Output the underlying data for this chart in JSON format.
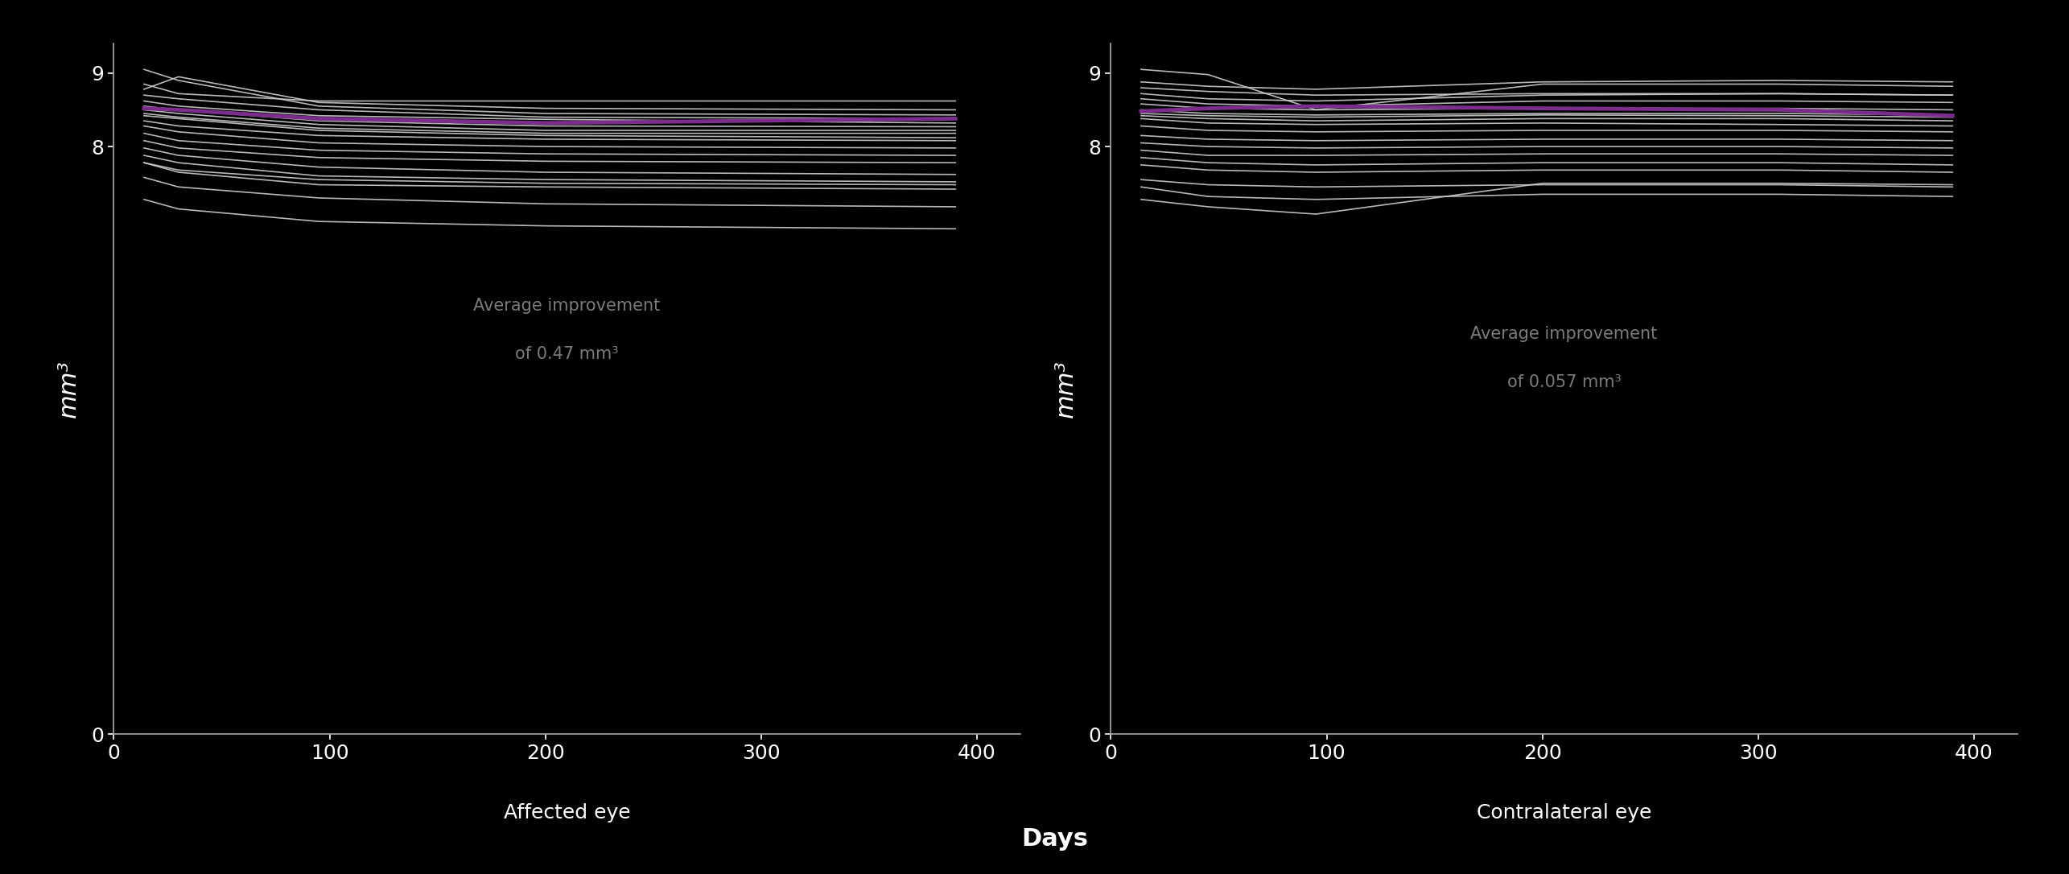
{
  "background_color": "#000000",
  "text_color": "#ffffff",
  "axis_color": "#aaaaaa",
  "line_color_individual": "#cccccc",
  "line_color_average": "#7b2d8b",
  "figsize": [
    25.71,
    10.86
  ],
  "dpi": 100,
  "ylim": [
    0,
    9.4
  ],
  "xlim": [
    0,
    420
  ],
  "yticks": [
    0,
    8,
    9
  ],
  "xticks": [
    0,
    100,
    200,
    300,
    400
  ],
  "xlabel": "Days",
  "ylabel": "mm³",
  "subtitle_left": "Affected eye",
  "subtitle_right": "Contralateral eye",
  "annotation_left_line1": "Average improvement",
  "annotation_left_line2": "of 0.47 mm³",
  "annotation_right_line1": "Average improvement",
  "annotation_right_line2": "of 0.057 mm³",
  "affected_eye_patients": [
    [
      14,
      8.85,
      30,
      8.72,
      95,
      8.62,
      200,
      8.62,
      390,
      8.62
    ],
    [
      14,
      9.05,
      30,
      8.9,
      95,
      8.55,
      200,
      8.45,
      390,
      8.43
    ],
    [
      14,
      8.78,
      30,
      8.95,
      95,
      8.6,
      200,
      8.52,
      390,
      8.5
    ],
    [
      14,
      8.7,
      30,
      8.65,
      95,
      8.5,
      200,
      8.4,
      390,
      8.38
    ],
    [
      14,
      8.62,
      30,
      8.55,
      95,
      8.42,
      200,
      8.37,
      390,
      8.32
    ],
    [
      14,
      8.55,
      30,
      8.5,
      95,
      8.35,
      200,
      8.28,
      390,
      8.27
    ],
    [
      14,
      8.5,
      30,
      8.45,
      95,
      8.3,
      200,
      8.22,
      390,
      8.22
    ],
    [
      14,
      8.45,
      30,
      8.4,
      95,
      8.25,
      200,
      8.18,
      390,
      8.18
    ],
    [
      14,
      8.35,
      30,
      8.28,
      95,
      8.15,
      200,
      8.1,
      390,
      8.08
    ],
    [
      14,
      8.28,
      30,
      8.2,
      95,
      8.05,
      200,
      8.0,
      390,
      7.98
    ],
    [
      14,
      8.18,
      30,
      8.08,
      95,
      7.95,
      200,
      7.9,
      390,
      7.88
    ],
    [
      14,
      8.08,
      30,
      7.98,
      95,
      7.85,
      200,
      7.8,
      390,
      7.78
    ],
    [
      14,
      7.98,
      30,
      7.88,
      95,
      7.72,
      200,
      7.65,
      390,
      7.62
    ],
    [
      14,
      7.88,
      30,
      7.78,
      95,
      7.6,
      200,
      7.55,
      390,
      7.52
    ],
    [
      14,
      7.78,
      30,
      7.65,
      95,
      7.48,
      200,
      7.45,
      390,
      7.42
    ],
    [
      14,
      7.58,
      30,
      7.45,
      95,
      7.3,
      200,
      7.22,
      390,
      7.18
    ],
    [
      14,
      7.28,
      30,
      7.15,
      95,
      6.98,
      200,
      6.92,
      390,
      6.88
    ],
    [
      14,
      8.42,
      30,
      8.38,
      95,
      8.22,
      200,
      8.15,
      390,
      8.12
    ],
    [
      14,
      7.78,
      30,
      7.68,
      95,
      7.55,
      200,
      7.5,
      390,
      7.48
    ]
  ],
  "affected_eye_average": [
    [
      14,
      8.52
    ],
    [
      30,
      8.5
    ],
    [
      95,
      8.38
    ],
    [
      200,
      8.32
    ],
    [
      390,
      8.38
    ]
  ],
  "contralateral_eye_patients": [
    [
      14,
      8.88,
      45,
      8.82,
      95,
      8.78,
      200,
      8.88,
      310,
      8.9,
      390,
      8.88
    ],
    [
      14,
      8.72,
      45,
      8.65,
      95,
      8.62,
      200,
      8.7,
      310,
      8.72,
      390,
      8.7
    ],
    [
      14,
      8.65,
      45,
      8.58,
      95,
      8.55,
      200,
      8.62,
      310,
      8.62,
      390,
      8.6
    ],
    [
      14,
      8.58,
      45,
      8.52,
      95,
      8.5,
      200,
      8.52,
      310,
      8.52,
      390,
      8.5
    ],
    [
      14,
      8.5,
      45,
      8.45,
      95,
      8.43,
      200,
      8.45,
      310,
      8.45,
      390,
      8.43
    ],
    [
      14,
      8.45,
      45,
      8.42,
      95,
      8.4,
      200,
      8.43,
      310,
      8.42,
      390,
      8.4
    ],
    [
      14,
      8.38,
      45,
      8.32,
      95,
      8.3,
      200,
      8.32,
      310,
      8.3,
      390,
      8.28
    ],
    [
      14,
      8.28,
      45,
      8.22,
      95,
      8.2,
      200,
      8.22,
      310,
      8.22,
      390,
      8.2
    ],
    [
      14,
      8.15,
      45,
      8.1,
      95,
      8.08,
      200,
      8.1,
      310,
      8.1,
      390,
      8.08
    ],
    [
      14,
      8.05,
      45,
      8.0,
      95,
      7.98,
      200,
      8.0,
      310,
      8.0,
      390,
      7.98
    ],
    [
      14,
      7.95,
      45,
      7.88,
      95,
      7.88,
      200,
      7.9,
      310,
      7.9,
      390,
      7.88
    ],
    [
      14,
      7.85,
      45,
      7.78,
      95,
      7.75,
      200,
      7.78,
      310,
      7.78,
      390,
      7.75
    ],
    [
      14,
      7.75,
      45,
      7.68,
      95,
      7.65,
      200,
      7.68,
      310,
      7.68,
      390,
      7.65
    ],
    [
      14,
      7.55,
      45,
      7.48,
      95,
      7.45,
      200,
      7.48,
      310,
      7.48,
      390,
      7.45
    ],
    [
      14,
      7.45,
      45,
      7.32,
      95,
      7.28,
      200,
      7.35,
      310,
      7.35,
      390,
      7.32
    ],
    [
      14,
      9.05,
      45,
      8.98,
      95,
      8.5,
      200,
      8.85,
      310,
      8.85,
      390,
      8.82
    ],
    [
      14,
      8.8,
      45,
      8.75,
      95,
      8.7,
      200,
      8.72,
      310,
      8.72,
      390,
      8.7
    ],
    [
      14,
      7.28,
      45,
      7.18,
      95,
      7.08,
      200,
      7.5,
      310,
      7.5,
      390,
      7.48
    ],
    [
      14,
      8.42,
      45,
      8.38,
      95,
      8.35,
      200,
      8.38,
      310,
      8.38,
      390,
      8.35
    ]
  ],
  "contralateral_eye_average": [
    [
      14,
      8.48
    ],
    [
      45,
      8.52
    ],
    [
      95,
      8.55
    ],
    [
      200,
      8.52
    ],
    [
      310,
      8.5
    ],
    [
      390,
      8.42
    ]
  ]
}
